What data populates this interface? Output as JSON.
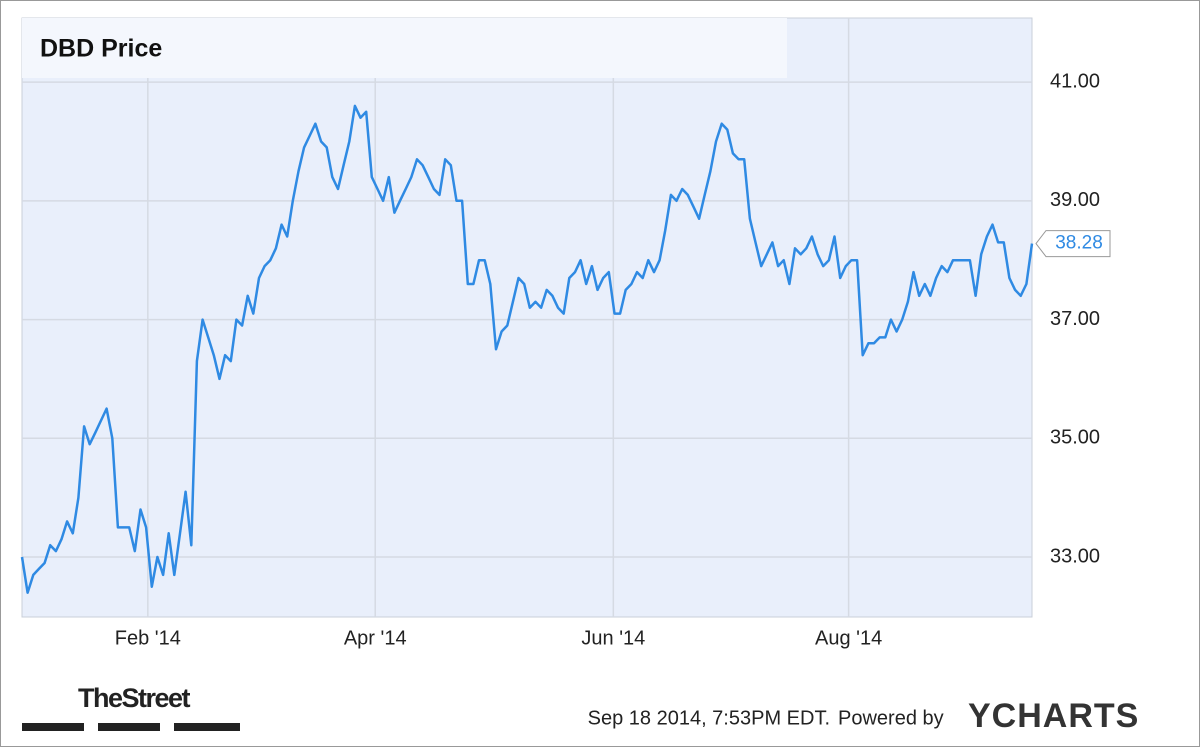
{
  "chart_data": {
    "type": "line",
    "title": "DBD Price",
    "values": [
      33.0,
      32.4,
      32.7,
      32.8,
      32.9,
      33.2,
      33.1,
      33.3,
      33.6,
      33.4,
      34.0,
      35.2,
      34.9,
      35.1,
      35.3,
      35.5,
      35.0,
      33.5,
      33.5,
      33.5,
      33.1,
      33.8,
      33.5,
      32.5,
      33.0,
      32.7,
      33.4,
      32.7,
      33.4,
      34.1,
      33.2,
      36.3,
      37.0,
      36.7,
      36.4,
      36.0,
      36.4,
      36.3,
      37.0,
      36.9,
      37.4,
      37.1,
      37.7,
      37.9,
      38.0,
      38.2,
      38.6,
      38.4,
      39.0,
      39.5,
      39.9,
      40.1,
      40.3,
      40.0,
      39.9,
      39.4,
      39.2,
      39.6,
      40.0,
      40.6,
      40.4,
      40.5,
      39.4,
      39.2,
      39.0,
      39.4,
      38.8,
      39.0,
      39.2,
      39.4,
      39.7,
      39.6,
      39.4,
      39.2,
      39.1,
      39.7,
      39.6,
      39.0,
      39.0,
      37.6,
      37.6,
      38.0,
      38.0,
      37.6,
      36.5,
      36.8,
      36.9,
      37.3,
      37.7,
      37.6,
      37.2,
      37.3,
      37.2,
      37.5,
      37.4,
      37.2,
      37.1,
      37.7,
      37.8,
      38.0,
      37.6,
      37.9,
      37.5,
      37.7,
      37.8,
      37.1,
      37.1,
      37.5,
      37.6,
      37.8,
      37.7,
      38.0,
      37.8,
      38.0,
      38.5,
      39.1,
      39.0,
      39.2,
      39.1,
      38.9,
      38.7,
      39.1,
      39.5,
      40.0,
      40.3,
      40.2,
      39.8,
      39.7,
      39.7,
      38.7,
      38.3,
      37.9,
      38.1,
      38.3,
      37.9,
      38.0,
      37.6,
      38.2,
      38.1,
      38.2,
      38.4,
      38.1,
      37.9,
      38.0,
      38.4,
      37.7,
      37.9,
      38.0,
      38.0,
      36.4,
      36.6,
      36.6,
      36.7,
      36.7,
      37.0,
      36.8,
      37.0,
      37.3,
      37.8,
      37.4,
      37.6,
      37.4,
      37.7,
      37.9,
      37.8,
      38.0,
      38.0,
      38.0,
      38.0,
      37.4,
      38.1,
      38.4,
      38.6,
      38.3,
      38.3,
      37.7,
      37.5,
      37.4,
      37.6,
      38.28
    ],
    "color": "#2f8ae3",
    "xlim": [
      0,
      179
    ],
    "xticks": [
      {
        "value": 22.3,
        "label": "Feb '14"
      },
      {
        "value": 62.6,
        "label": "Apr '14"
      },
      {
        "value": 104.8,
        "label": "Jun '14"
      },
      {
        "value": 146.5,
        "label": "Aug '14"
      }
    ],
    "ylim": [
      31.99,
      42.08
    ],
    "yticks": [
      {
        "value": 33,
        "label": "33.00"
      },
      {
        "value": 35,
        "label": "35.00"
      },
      {
        "value": 37,
        "label": "37.00"
      },
      {
        "value": 39,
        "label": "39.00"
      },
      {
        "value": 41,
        "label": "41.00"
      }
    ],
    "grid": true
  },
  "branding": {
    "publisher": "TheStreet",
    "timestamp": "Sep 18 2014, 7:53PM EDT.",
    "powered_by": "Powered by",
    "provider": "YCHARTS"
  }
}
